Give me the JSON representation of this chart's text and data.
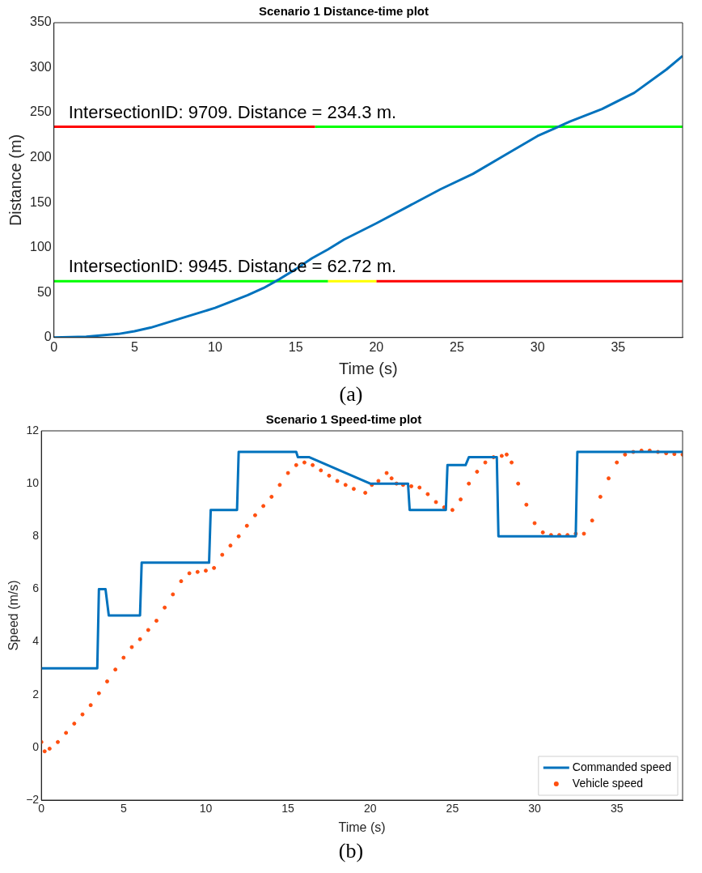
{
  "chart_data": [
    {
      "type": "line",
      "title": "Scenario 1 Distance-time plot",
      "xlabel": "Time (s)",
      "ylabel": "Distance (m)",
      "xlim": [
        0,
        39
      ],
      "ylim": [
        0,
        350
      ],
      "xticks": [
        0,
        5,
        10,
        15,
        20,
        25,
        30,
        35
      ],
      "yticks": [
        0,
        50,
        100,
        150,
        200,
        250,
        300,
        350
      ],
      "grid": false,
      "legend": false,
      "series": [
        {
          "color": "#0072bd",
          "x": [
            0,
            2,
            4,
            5,
            6,
            8,
            10,
            12,
            13,
            14,
            15,
            16,
            17,
            18,
            20,
            22,
            24,
            26,
            28,
            30,
            31,
            32,
            34,
            36,
            38,
            39
          ],
          "values": [
            0,
            1,
            4,
            7,
            11,
            22,
            33,
            47,
            55,
            65,
            76,
            88,
            98,
            109,
            127,
            146,
            165,
            182,
            203,
            224,
            232,
            240,
            254,
            272,
            298,
            313
          ]
        },
        {
          "color": "#ff0000",
          "x": [
            0,
            16.2
          ],
          "values": [
            234.3,
            234.3
          ]
        },
        {
          "color": "#00ff00",
          "x": [
            16.2,
            39
          ],
          "values": [
            234.3,
            234.3
          ]
        },
        {
          "color": "#00ff00",
          "x": [
            0,
            17
          ],
          "values": [
            62.72,
            62.72
          ]
        },
        {
          "color": "#ffff00",
          "x": [
            17,
            20
          ],
          "values": [
            62.72,
            62.72
          ]
        },
        {
          "color": "#ff0000",
          "x": [
            20,
            39
          ],
          "values": [
            62.72,
            62.72
          ]
        }
      ],
      "annotations": [
        {
          "text": "IntersectionID: 9709. Distance = 234.3 m.",
          "x": 0,
          "y": 234.3
        },
        {
          "text": "IntersectionID: 9945. Distance = 62.72 m.",
          "x": 0,
          "y": 62.72
        },
        "(a)"
      ]
    },
    {
      "type": "line",
      "title": "Scenario 1 Speed-time plot",
      "xlabel": "Time (s)",
      "ylabel": "Speed (m/s)",
      "xlim": [
        0,
        39
      ],
      "ylim": [
        -2,
        12
      ],
      "xticks": [
        0,
        5,
        10,
        15,
        20,
        25,
        30,
        35
      ],
      "yticks": [
        {
          "value": -2,
          "label": "−2"
        },
        0,
        2,
        4,
        6,
        8,
        10,
        12
      ],
      "grid": false,
      "legend": "bottom right",
      "series": [
        {
          "name": "Commanded speed",
          "color": "#0072bd",
          "x": [
            0,
            3.4,
            3.5,
            3.9,
            4.1,
            6.0,
            6.1,
            10.2,
            10.3,
            11.9,
            12.0,
            15.5,
            15.6,
            16.3,
            20,
            22.3,
            22.4,
            24.6,
            24.7,
            25.8,
            26,
            27.7,
            27.8,
            32.5,
            32.6,
            39
          ],
          "values": [
            3,
            3,
            6,
            6,
            5,
            5,
            7,
            7,
            9,
            9,
            11.2,
            11.2,
            11,
            11,
            10,
            10,
            9,
            9,
            10.7,
            10.7,
            11,
            11,
            8,
            8,
            11.2,
            11.2
          ]
        },
        {
          "name": "Vehicle speed",
          "type": "scatter",
          "marker": "circle",
          "color": "#ff4f0f",
          "x": [
            0,
            0.2,
            0.5,
            1,
            1.5,
            2,
            2.5,
            3,
            3.5,
            4,
            4.5,
            5,
            5.5,
            6,
            6.5,
            7,
            7.5,
            8,
            8.5,
            9,
            9.5,
            10,
            10.5,
            11,
            11.5,
            12,
            12.5,
            13,
            13.5,
            14,
            14.5,
            15,
            15.5,
            16,
            16.5,
            17,
            17.5,
            18,
            18.5,
            19,
            19.7,
            20.1,
            20.5,
            21,
            21.3,
            21.6,
            22,
            22.5,
            23,
            23.5,
            24,
            24.5,
            25,
            25.5,
            26,
            26.5,
            27,
            27.5,
            28,
            28.3,
            28.6,
            29,
            29.5,
            30,
            30.5,
            31,
            31.5,
            32,
            32.5,
            33,
            33.5,
            34,
            34.5,
            35,
            35.5,
            36,
            36.5,
            37,
            37.5,
            38,
            38.5,
            39
          ],
          "values": [
            0.2,
            -0.15,
            -0.05,
            0.2,
            0.55,
            0.9,
            1.25,
            1.6,
            2.05,
            2.5,
            2.95,
            3.4,
            3.8,
            4.1,
            4.45,
            4.8,
            5.3,
            5.8,
            6.3,
            6.6,
            6.65,
            6.7,
            6.8,
            7.3,
            7.65,
            8.0,
            8.4,
            8.8,
            9.15,
            9.5,
            9.95,
            10.4,
            10.7,
            10.8,
            10.7,
            10.5,
            10.3,
            10.1,
            9.95,
            9.8,
            9.65,
            9.95,
            10.1,
            10.4,
            10.2,
            10.0,
            9.95,
            9.9,
            9.85,
            9.6,
            9.3,
            9.1,
            9.0,
            9.4,
            10.0,
            10.45,
            10.8,
            11.0,
            11.05,
            11.1,
            10.8,
            10.0,
            9.2,
            8.5,
            8.15,
            8.05,
            8.05,
            8.05,
            8.1,
            8.1,
            8.6,
            9.5,
            10.2,
            10.8,
            11.1,
            11.2,
            11.25,
            11.25,
            11.2,
            11.15,
            11.12,
            11.1
          ]
        }
      ],
      "annotations": [
        "(b)"
      ]
    }
  ]
}
